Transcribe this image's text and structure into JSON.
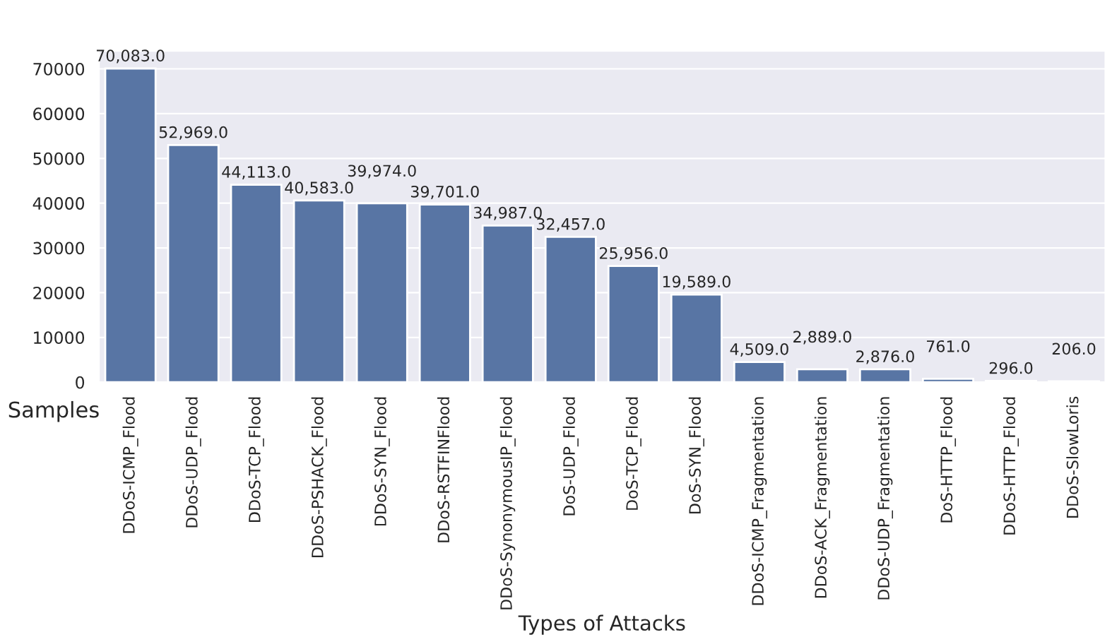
{
  "chart_data": {
    "type": "bar",
    "xlabel": "Types of Attacks",
    "ylabel": "Samples",
    "categories": [
      "DDoS-ICMP_Flood",
      "DDoS-UDP_Flood",
      "DDoS-TCP_Flood",
      "DDoS-PSHACK_Flood",
      "DDoS-SYN_Flood",
      "DDoS-RSTFINFlood",
      "DDoS-SynonymousIP_Flood",
      "DoS-UDP_Flood",
      "DoS-TCP_Flood",
      "DoS-SYN_Flood",
      "DDoS-ICMP_Fragmentation",
      "DDoS-ACK_Fragmentation",
      "DDoS-UDP_Fragmentation",
      "DoS-HTTP_Flood",
      "DDoS-HTTP_Flood",
      "DDoS-SlowLoris"
    ],
    "values": [
      70083,
      52969,
      44113,
      40583,
      39974,
      39701,
      34987,
      32457,
      25956,
      19589,
      4509,
      2889,
      2876,
      761,
      296,
      206
    ],
    "value_labels": [
      "70,083.0",
      "52,969.0",
      "44,113.0",
      "40,583.0",
      "39,974.0",
      "39,701.0",
      "34,987.0",
      "32,457.0",
      "25,956.0",
      "19,589.0",
      "4,509.0",
      "2,889.0",
      "2,876.0",
      "761.0",
      "296.0",
      "206.0"
    ],
    "color": "#5875a4",
    "ylim": [
      0,
      74000
    ],
    "yticks": [
      0,
      10000,
      20000,
      30000,
      40000,
      50000,
      60000,
      70000
    ],
    "grid": "y"
  }
}
